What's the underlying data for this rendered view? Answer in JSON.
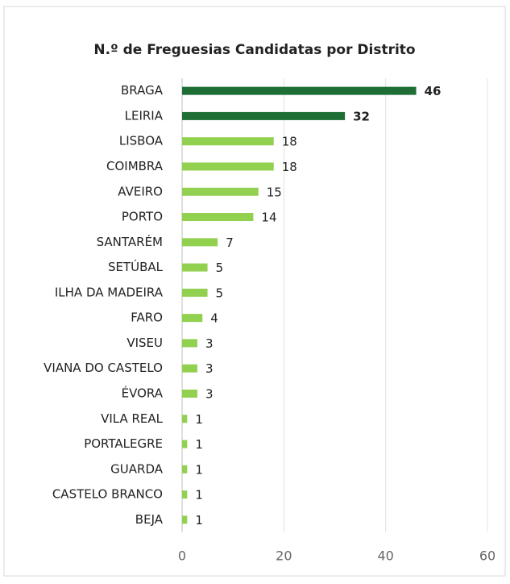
{
  "chart_data": {
    "type": "hbar",
    "title": "N.º de Freguesias Candidatas por Distrito",
    "categories": [
      "BRAGA",
      "LEIRIA",
      "LISBOA",
      "COIMBRA",
      "AVEIRO",
      "PORTO",
      "SANTARÉM",
      "SETÚBAL",
      "ILHA DA MADEIRA",
      "FARO",
      "VISEU",
      "VIANA DO CASTELO",
      "ÉVORA",
      "VILA REAL",
      "PORTALEGRE",
      "GUARDA",
      "CASTELO BRANCO",
      "BEJA"
    ],
    "values": [
      46,
      32,
      18,
      18,
      15,
      14,
      7,
      5,
      5,
      4,
      3,
      3,
      3,
      1,
      1,
      1,
      1,
      1
    ],
    "colors": [
      "#1e6e36",
      "#1e6e36",
      "#92d050",
      "#92d050",
      "#92d050",
      "#92d050",
      "#92d050",
      "#92d050",
      "#92d050",
      "#92d050",
      "#92d050",
      "#92d050",
      "#92d050",
      "#92d050",
      "#92d050",
      "#92d050",
      "#92d050",
      "#92d050"
    ],
    "bold_labels": [
      true,
      true,
      false,
      false,
      false,
      false,
      false,
      false,
      false,
      false,
      false,
      false,
      false,
      false,
      false,
      false,
      false,
      false
    ],
    "xlim": [
      0,
      60
    ],
    "xticks": [
      0,
      20,
      40,
      60
    ],
    "grid": true
  }
}
